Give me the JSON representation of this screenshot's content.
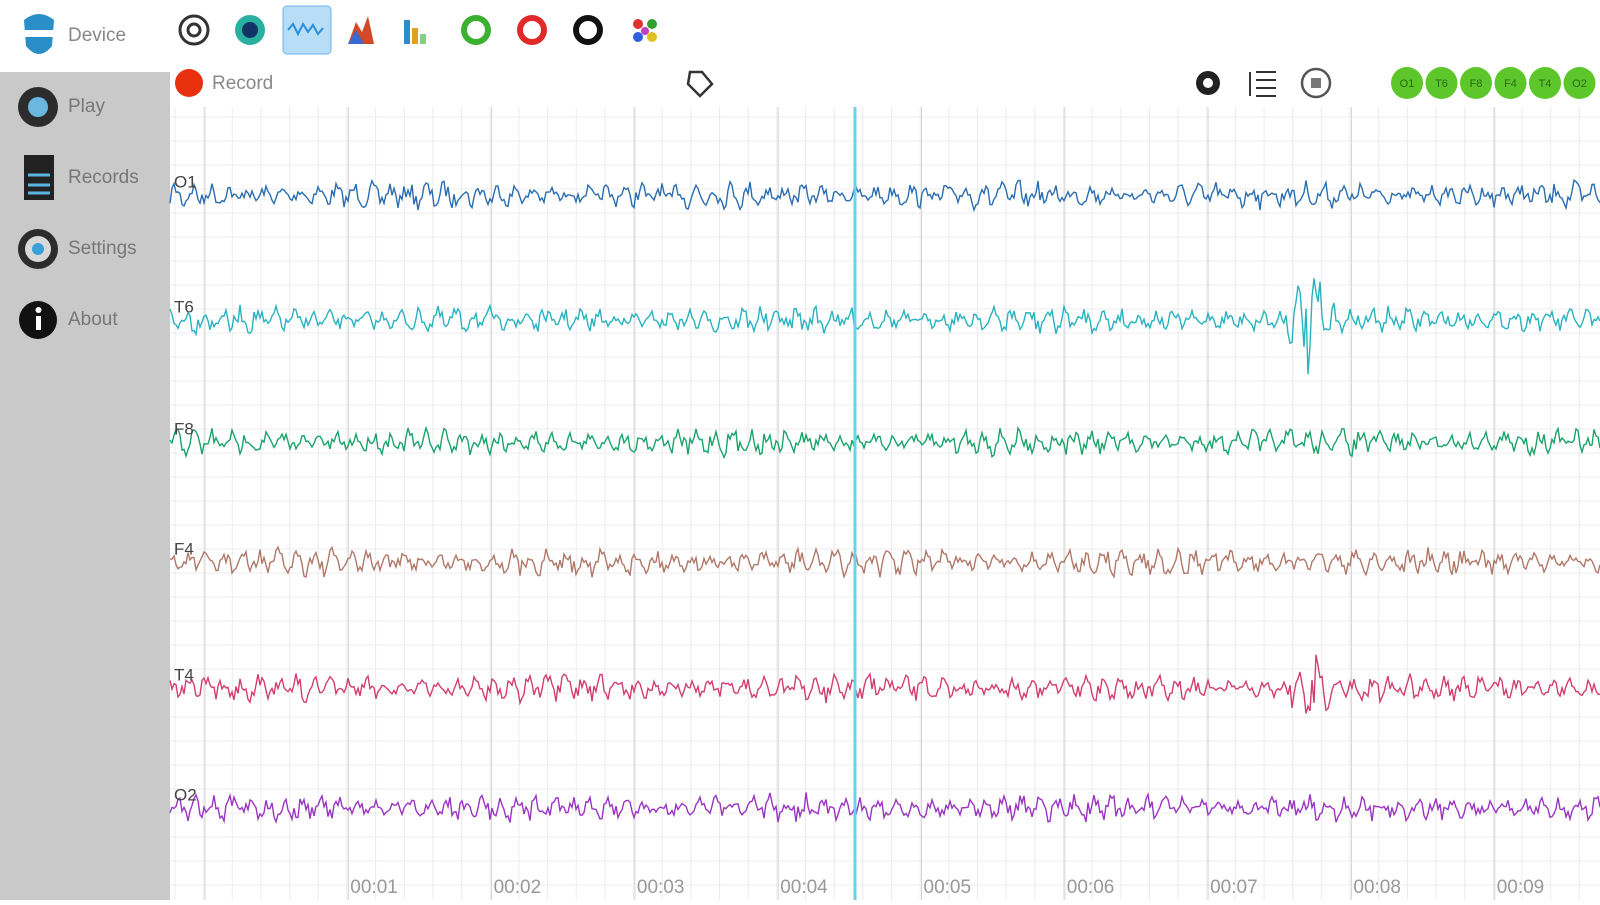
{
  "sidebar": {
    "device": "Device",
    "items": [
      "Play",
      "Records",
      "Settings",
      "About"
    ]
  },
  "toolbar": {
    "record": "Record"
  },
  "channels": [
    {
      "label": "O1",
      "color": "#2a6db0"
    },
    {
      "label": "T6",
      "color": "#27b3bf"
    },
    {
      "label": "F8",
      "color": "#1aa36a"
    },
    {
      "label": "F4",
      "color": "#b07868"
    },
    {
      "label": "T4",
      "color": "#d23f6e"
    },
    {
      "label": "O2",
      "color": "#9a35c2"
    }
  ],
  "time_labels": [
    "00:01",
    "00:02",
    "00:03",
    "00:04",
    "00:05",
    "00:06",
    "00:07",
    "00:08",
    "00:09"
  ],
  "chips": [
    "O1",
    "T6",
    "F8",
    "F4",
    "T4",
    "O2"
  ]
}
